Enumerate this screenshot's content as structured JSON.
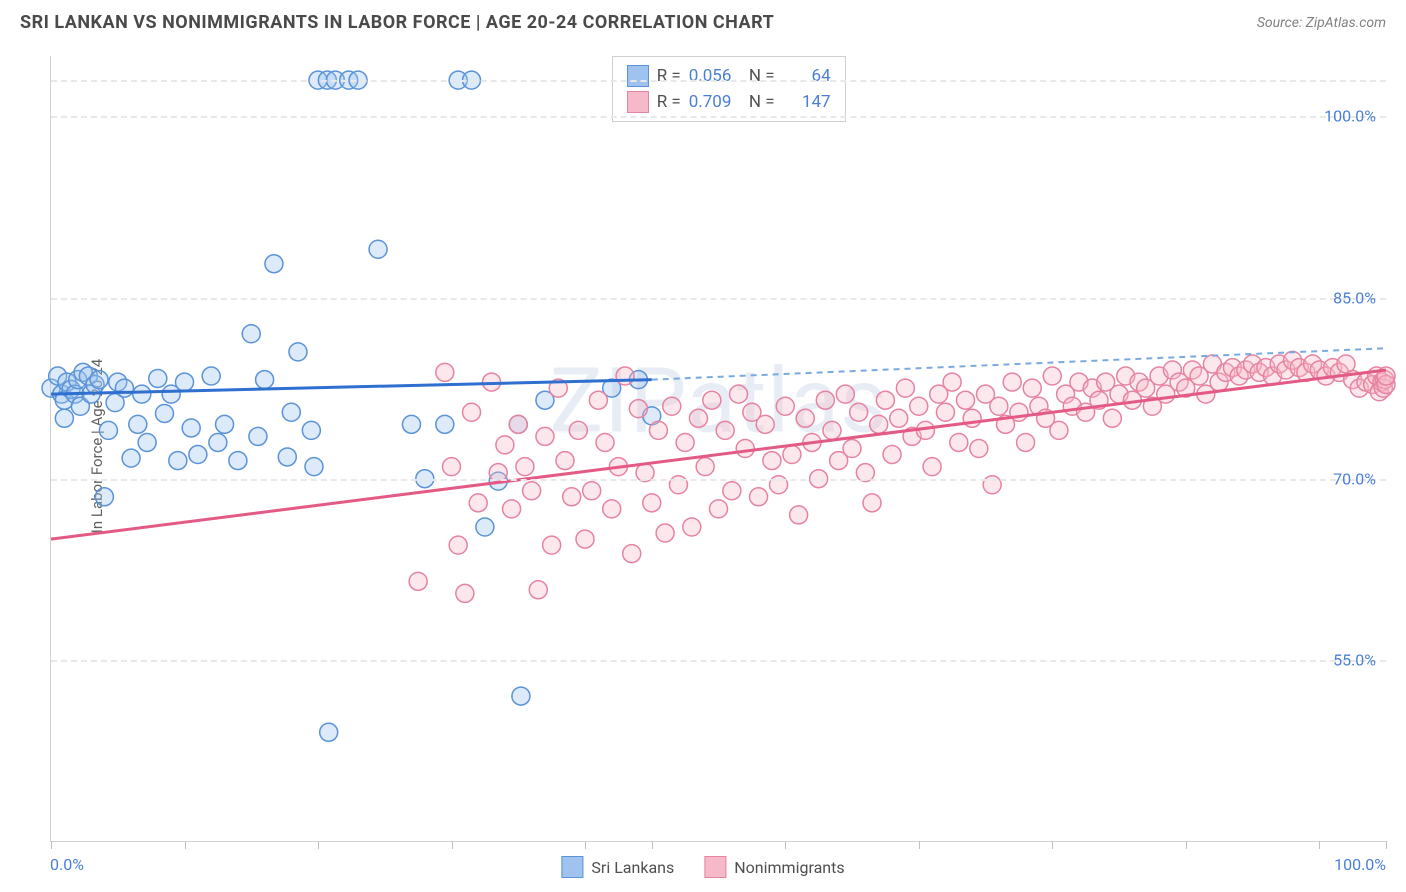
{
  "title": "SRI LANKAN VS NONIMMIGRANTS IN LABOR FORCE | AGE 20-24 CORRELATION CHART",
  "source": "Source: ZipAtlas.com",
  "watermark": "ZIPatlas",
  "yaxis_title": "In Labor Force | Age 20-24",
  "xlabel_min": "0.0%",
  "xlabel_max": "100.0%",
  "chart": {
    "type": "scatter",
    "xlim": [
      0,
      100
    ],
    "ylim": [
      40,
      105
    ],
    "ytick_vals": [
      55.0,
      70.0,
      85.0,
      100.0
    ],
    "ytick_labels": [
      "55.0%",
      "70.0%",
      "85.0%",
      "100.0%"
    ],
    "gridline_top_y": 103,
    "xtick_vals": [
      0,
      10,
      20,
      30,
      40,
      45,
      55,
      65,
      75,
      85,
      95,
      100
    ],
    "background_color": "#ffffff",
    "grid_color": "#e8e8e8",
    "axis_color": "#d0d0d0",
    "tick_label_color": "#4a7fd8",
    "marker_radius": 9,
    "marker_stroke_width": 1.5,
    "marker_fill_opacity": 0.35,
    "series": [
      {
        "name": "Sri Lankans",
        "fill": "#9fc3ee",
        "stroke": "#5a93d8",
        "trend_color": "#2e6fd0",
        "trend_width": 3,
        "trend_dash_color": "#7aa9e0",
        "R": "0.056",
        "N": "64",
        "trend": {
          "x1": 0,
          "y1": 77.0,
          "x2": 45,
          "y2": 78.2,
          "ext_x2": 100,
          "ext_y2": 80.8
        },
        "points": [
          [
            0,
            77.5
          ],
          [
            0.5,
            78.5
          ],
          [
            0.8,
            77
          ],
          [
            1,
            76.5
          ],
          [
            1.2,
            78
          ],
          [
            1.5,
            77.4
          ],
          [
            1.8,
            77
          ],
          [
            2,
            78.2
          ],
          [
            2.2,
            76
          ],
          [
            2.4,
            78.8
          ],
          [
            2.8,
            78.5
          ],
          [
            3.0,
            77.0
          ],
          [
            3.3,
            77.8
          ],
          [
            3.6,
            78.2
          ],
          [
            1.0,
            75.0
          ],
          [
            4.0,
            68.5
          ],
          [
            4.3,
            74.0
          ],
          [
            4.8,
            76.3
          ],
          [
            5.0,
            78.0
          ],
          [
            5.5,
            77.5
          ],
          [
            6.0,
            71.7
          ],
          [
            6.5,
            74.5
          ],
          [
            6.8,
            77.0
          ],
          [
            7.2,
            73.0
          ],
          [
            8.0,
            78.3
          ],
          [
            8.5,
            75.4
          ],
          [
            9.0,
            77.0
          ],
          [
            9.5,
            71.5
          ],
          [
            10.0,
            78.0
          ],
          [
            10.5,
            74.2
          ],
          [
            11.0,
            72.0
          ],
          [
            12.0,
            78.5
          ],
          [
            12.5,
            73.0
          ],
          [
            13.0,
            74.5
          ],
          [
            14.0,
            71.5
          ],
          [
            15.0,
            82.0
          ],
          [
            15.5,
            73.5
          ],
          [
            16.0,
            78.2
          ],
          [
            16.7,
            87.8
          ],
          [
            17.7,
            71.8
          ],
          [
            18.0,
            75.5
          ],
          [
            18.5,
            80.5
          ],
          [
            19.5,
            74.0
          ],
          [
            19.7,
            71.0
          ],
          [
            20.0,
            103
          ],
          [
            20.7,
            103
          ],
          [
            20.8,
            49.0
          ],
          [
            21.3,
            103
          ],
          [
            22.3,
            103
          ],
          [
            23.0,
            103
          ],
          [
            24.5,
            89.0
          ],
          [
            27.0,
            74.5
          ],
          [
            28.0,
            70.0
          ],
          [
            29.5,
            74.5
          ],
          [
            30.5,
            103
          ],
          [
            31.5,
            103
          ],
          [
            32.5,
            66.0
          ],
          [
            33.5,
            69.8
          ],
          [
            35.0,
            74.5
          ],
          [
            35.2,
            52.0
          ],
          [
            37.0,
            76.5
          ],
          [
            42.0,
            77.5
          ],
          [
            44.0,
            78.2
          ],
          [
            45.0,
            75.2
          ]
        ]
      },
      {
        "name": "Nonimmigrants",
        "fill": "#f5b9c9",
        "stroke": "#e683a1",
        "trend_color": "#e35a85",
        "trend_width": 3,
        "R": "0.709",
        "N": "147",
        "trend": {
          "x1": 0,
          "y1": 65.0,
          "x2": 100,
          "y2": 79.0
        },
        "points": [
          [
            27.5,
            61.5
          ],
          [
            29.5,
            78.8
          ],
          [
            30.0,
            71.0
          ],
          [
            30.5,
            64.5
          ],
          [
            31.0,
            60.5
          ],
          [
            31.5,
            75.5
          ],
          [
            32.0,
            68.0
          ],
          [
            33.0,
            78.0
          ],
          [
            33.5,
            70.5
          ],
          [
            34.0,
            72.8
          ],
          [
            34.5,
            67.5
          ],
          [
            35.0,
            74.5
          ],
          [
            35.5,
            71
          ],
          [
            36.0,
            69
          ],
          [
            36.5,
            60.8
          ],
          [
            37.0,
            73.5
          ],
          [
            37.5,
            64.5
          ],
          [
            38.0,
            77.5
          ],
          [
            38.5,
            71.5
          ],
          [
            39.0,
            68.5
          ],
          [
            39.5,
            74
          ],
          [
            40.0,
            65.0
          ],
          [
            40.5,
            69.0
          ],
          [
            41.0,
            76.5
          ],
          [
            41.5,
            73
          ],
          [
            42.0,
            67.5
          ],
          [
            42.5,
            71
          ],
          [
            43.0,
            78.5
          ],
          [
            43.5,
            63.8
          ],
          [
            44.0,
            75.8
          ],
          [
            44.5,
            70.5
          ],
          [
            45.0,
            68
          ],
          [
            45.5,
            74
          ],
          [
            46.0,
            65.5
          ],
          [
            46.5,
            76
          ],
          [
            47.0,
            69.5
          ],
          [
            47.5,
            73
          ],
          [
            48.0,
            66
          ],
          [
            48.5,
            75
          ],
          [
            49.0,
            71
          ],
          [
            49.5,
            76.5
          ],
          [
            50.0,
            67.5
          ],
          [
            50.5,
            74
          ],
          [
            51.0,
            69
          ],
          [
            51.5,
            77
          ],
          [
            52.0,
            72.5
          ],
          [
            52.5,
            75.5
          ],
          [
            53.0,
            68.5
          ],
          [
            53.5,
            74.5
          ],
          [
            54.0,
            71.5
          ],
          [
            54.5,
            69.5
          ],
          [
            55.0,
            76
          ],
          [
            55.5,
            72
          ],
          [
            56.0,
            67
          ],
          [
            56.5,
            75
          ],
          [
            57.0,
            73
          ],
          [
            57.5,
            70
          ],
          [
            58.0,
            76.5
          ],
          [
            58.5,
            74
          ],
          [
            59.0,
            71.5
          ],
          [
            59.5,
            77
          ],
          [
            60.0,
            72.5
          ],
          [
            60.5,
            75.5
          ],
          [
            61.0,
            70.5
          ],
          [
            61.5,
            68
          ],
          [
            62.0,
            74.5
          ],
          [
            62.5,
            76.5
          ],
          [
            63.0,
            72
          ],
          [
            63.5,
            75
          ],
          [
            64.0,
            77.5
          ],
          [
            64.5,
            73.5
          ],
          [
            65.0,
            76
          ],
          [
            65.5,
            74
          ],
          [
            66.0,
            71
          ],
          [
            66.5,
            77
          ],
          [
            67.0,
            75.5
          ],
          [
            67.5,
            78
          ],
          [
            68.0,
            73
          ],
          [
            68.5,
            76.5
          ],
          [
            69.0,
            75
          ],
          [
            69.5,
            72.5
          ],
          [
            70.0,
            77
          ],
          [
            70.5,
            69.5
          ],
          [
            71.0,
            76
          ],
          [
            71.5,
            74.5
          ],
          [
            72.0,
            78
          ],
          [
            72.5,
            75.5
          ],
          [
            73.0,
            73
          ],
          [
            73.5,
            77.5
          ],
          [
            74.0,
            76
          ],
          [
            74.5,
            75
          ],
          [
            75.0,
            78.5
          ],
          [
            75.5,
            74
          ],
          [
            76.0,
            77
          ],
          [
            76.5,
            76
          ],
          [
            77.0,
            78
          ],
          [
            77.5,
            75.5
          ],
          [
            78.0,
            77.5
          ],
          [
            78.5,
            76.5
          ],
          [
            79.0,
            78
          ],
          [
            79.5,
            75
          ],
          [
            80.0,
            77
          ],
          [
            80.5,
            78.5
          ],
          [
            81.0,
            76.5
          ],
          [
            81.5,
            78
          ],
          [
            82.0,
            77.5
          ],
          [
            82.5,
            76
          ],
          [
            83.0,
            78.5
          ],
          [
            83.5,
            77
          ],
          [
            84.0,
            79
          ],
          [
            84.5,
            78
          ],
          [
            85.0,
            77.5
          ],
          [
            85.5,
            79
          ],
          [
            86.0,
            78.5
          ],
          [
            86.5,
            77
          ],
          [
            87.0,
            79.5
          ],
          [
            87.5,
            78
          ],
          [
            88.0,
            78.8
          ],
          [
            88.5,
            79.2
          ],
          [
            89.0,
            78.5
          ],
          [
            89.5,
            79
          ],
          [
            90.0,
            79.5
          ],
          [
            90.5,
            78.8
          ],
          [
            91.0,
            79.2
          ],
          [
            91.5,
            78.5
          ],
          [
            92.0,
            79.5
          ],
          [
            92.5,
            79
          ],
          [
            93.0,
            79.8
          ],
          [
            93.5,
            79.2
          ],
          [
            94.0,
            78.8
          ],
          [
            94.5,
            79.5
          ],
          [
            95.0,
            79
          ],
          [
            95.5,
            78.5
          ],
          [
            96.0,
            79.2
          ],
          [
            96.5,
            78.8
          ],
          [
            97.0,
            79.5
          ],
          [
            97.5,
            78.2
          ],
          [
            98.0,
            77.5
          ],
          [
            98.5,
            78
          ],
          [
            99.0,
            77.8
          ],
          [
            99.3,
            78.5
          ],
          [
            99.5,
            77.2
          ],
          [
            99.7,
            78.0
          ],
          [
            99.8,
            77.5
          ],
          [
            99.9,
            78.2
          ],
          [
            100,
            77.8
          ],
          [
            100,
            78.5
          ]
        ]
      }
    ]
  },
  "legend": {
    "items": [
      {
        "label": "Sri Lankans",
        "fill": "#9fc3ee",
        "stroke": "#5a93d8"
      },
      {
        "label": "Nonimmigrants",
        "fill": "#f5b9c9",
        "stroke": "#e683a1"
      }
    ]
  }
}
